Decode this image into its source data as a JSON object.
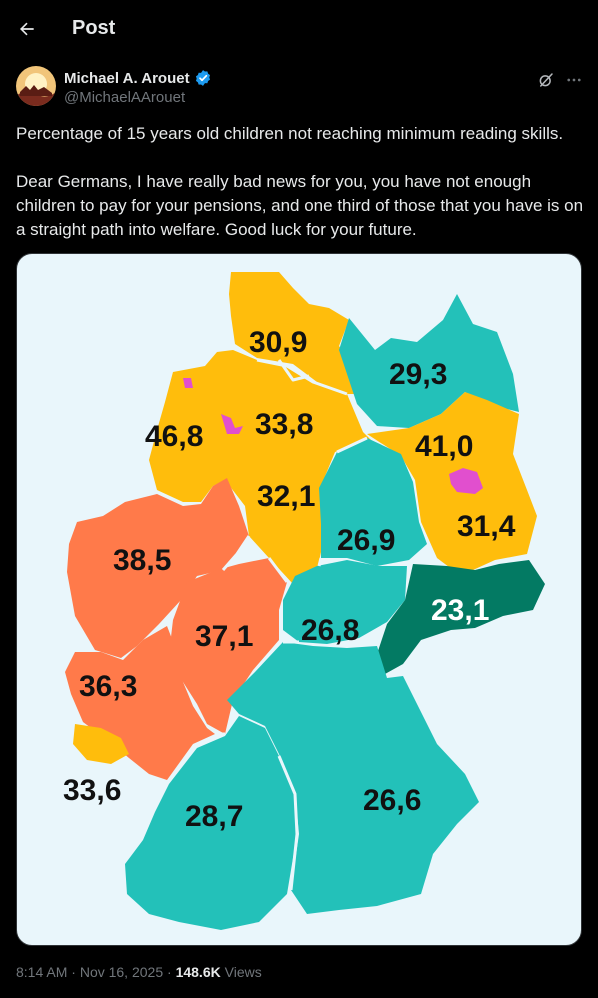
{
  "header": {
    "title": "Post"
  },
  "author": {
    "name": "Michael A. Arouet",
    "handle": "@MichaelAArouet"
  },
  "post": {
    "paragraphs": [
      "Percentage of 15 years old children not reaching minimum reading skills.",
      "Dear Germans, I have really bad news for you, you have not enough children to pay for your pensions, and one third of those that you have is on a straight path into welfare. Good luck for your future."
    ]
  },
  "map": {
    "background": "#e9f6fb",
    "colors": {
      "yellow": "#ffbd0c",
      "orange": "#ff7a4a",
      "teal": "#23c1b9",
      "dark_green": "#037a63",
      "magenta": "#e14fce"
    },
    "regions": [
      {
        "label": "30,9"
      },
      {
        "label": "29,3"
      },
      {
        "label": "46,8"
      },
      {
        "label": "33,8"
      },
      {
        "label": "41,0"
      },
      {
        "label": "32,1"
      },
      {
        "label": "31,4"
      },
      {
        "label": "38,5"
      },
      {
        "label": "26,9"
      },
      {
        "label": "23,1"
      },
      {
        "label": "37,1"
      },
      {
        "label": "26,8"
      },
      {
        "label": "36,3"
      },
      {
        "label": "33,6"
      },
      {
        "label": "28,7"
      },
      {
        "label": "26,6"
      }
    ]
  },
  "meta": {
    "time": "8:14 AM",
    "date": "Nov 16, 2025",
    "views_count": "148.6K",
    "views_label": "Views"
  }
}
